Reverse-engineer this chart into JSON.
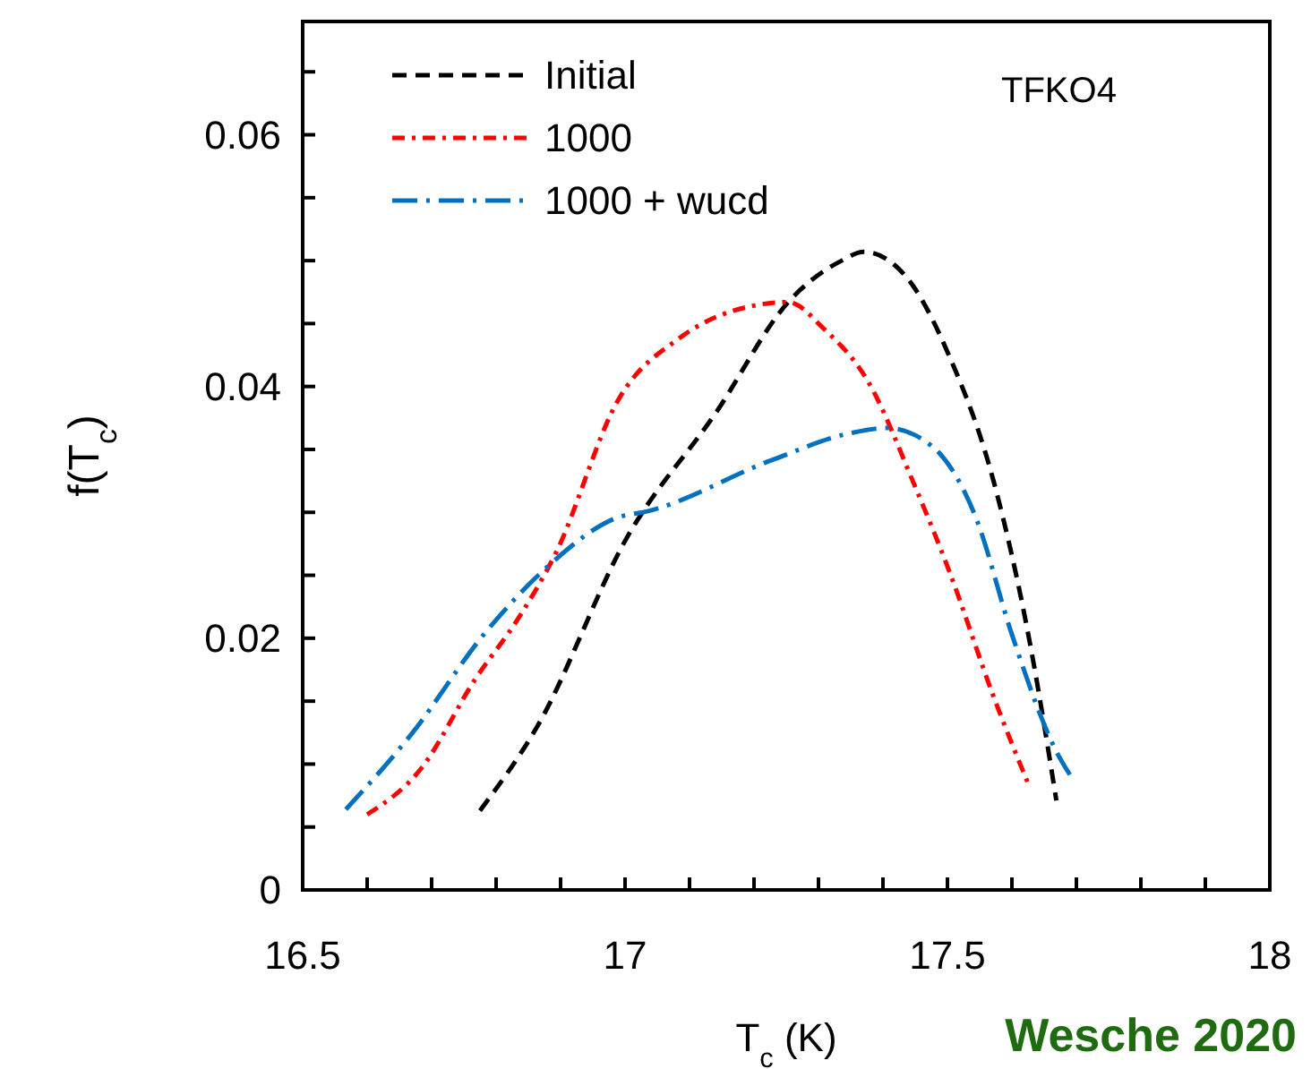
{
  "chart_data": {
    "type": "line",
    "xlabel": "T$_{c}$ (K)",
    "ylabel": "f(T$_{c}$)",
    "annotations": [
      "TFKO4",
      "Wesche 2020"
    ],
    "xlim": [
      16.5,
      18
    ],
    "ylim": [
      0,
      0.069
    ],
    "xticks": [
      16.5,
      {
        "value": 16.6,
        "label": null
      },
      {
        "value": 16.7,
        "label": null
      },
      {
        "value": 16.8,
        "label": null
      },
      {
        "value": 16.9,
        "label": null
      },
      17,
      {
        "value": 17.1,
        "label": null
      },
      {
        "value": 17.2,
        "label": null
      },
      {
        "value": 17.3,
        "label": null
      },
      {
        "value": 17.4,
        "label": null
      },
      17.5,
      {
        "value": 17.6,
        "label": null
      },
      {
        "value": 17.7,
        "label": null
      },
      {
        "value": 17.8,
        "label": null
      },
      {
        "value": 17.9,
        "label": null
      },
      18
    ],
    "yticks": [
      0,
      {
        "value": 0.005,
        "label": null
      },
      {
        "value": 0.01,
        "label": null
      },
      {
        "value": 0.015,
        "label": null
      },
      0.02,
      {
        "value": 0.025,
        "label": null
      },
      {
        "value": 0.03,
        "label": null
      },
      {
        "value": 0.035,
        "label": null
      },
      0.04,
      {
        "value": 0.045,
        "label": null
      },
      {
        "value": 0.05,
        "label": null
      },
      {
        "value": 0.055,
        "label": null
      },
      0.06,
      {
        "value": 0.065,
        "label": null
      }
    ],
    "legend": "top left",
    "grid": false,
    "series": [
      {
        "name": "Initial",
        "color": "#000000",
        "line_style": "dashed",
        "x": [
          16.775,
          16.864,
          17.003,
          17.142,
          17.253,
          17.336,
          17.37,
          17.433,
          17.503,
          17.572,
          17.628,
          17.669
        ],
        "values": [
          0.0063,
          0.013,
          0.028,
          0.038,
          0.0467,
          0.05,
          0.0507,
          0.0489,
          0.0424,
          0.0324,
          0.0196,
          0.0071
        ]
      },
      {
        "name": "1000",
        "color": "#ff0000",
        "line_style": "dashdot",
        "x": [
          16.6,
          16.683,
          16.767,
          16.836,
          16.892,
          16.989,
          17.086,
          17.197,
          17.253,
          17.308,
          17.378,
          17.447,
          17.503,
          17.572,
          17.628
        ],
        "values": [
          0.006,
          0.0096,
          0.0167,
          0.0217,
          0.0267,
          0.0389,
          0.0439,
          0.0464,
          0.0467,
          0.0446,
          0.0403,
          0.0324,
          0.0253,
          0.0153,
          0.0081
        ]
      },
      {
        "name": "1000 + wucd",
        "color": "#0070c0",
        "line_style": "longdashdot",
        "x": [
          16.567,
          16.669,
          16.781,
          16.878,
          16.989,
          17.036,
          17.225,
          17.35,
          17.406,
          17.475,
          17.544,
          17.6,
          17.669,
          17.697
        ],
        "values": [
          0.0064,
          0.0124,
          0.0203,
          0.0256,
          0.0296,
          0.0301,
          0.0341,
          0.0363,
          0.0367,
          0.0353,
          0.0296,
          0.0203,
          0.011,
          0.0086
        ]
      }
    ]
  }
}
